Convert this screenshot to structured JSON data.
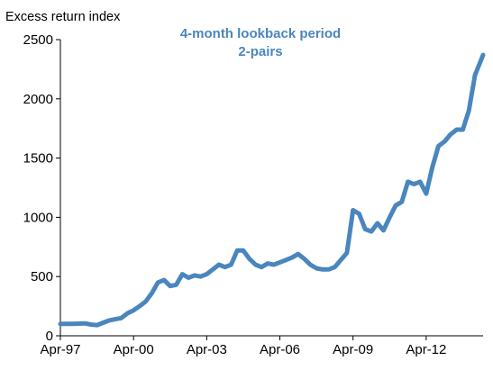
{
  "chart_data": {
    "type": "line",
    "title": "4-month lookback period",
    "subtitle": "2-pairs",
    "ylabel": "Excess return index",
    "xlabel": "",
    "ylim": [
      0,
      2500
    ],
    "yticks": [
      0,
      500,
      1000,
      1500,
      2000,
      2500
    ],
    "xlim": [
      "1997-04",
      "2014-08"
    ],
    "xticks": [
      {
        "date": "1997-04",
        "label": "Apr-97"
      },
      {
        "date": "2000-04",
        "label": "Apr-00"
      },
      {
        "date": "2003-04",
        "label": "Apr-03"
      },
      {
        "date": "2006-04",
        "label": "Apr-06"
      },
      {
        "date": "2009-04",
        "label": "Apr-09"
      },
      {
        "date": "2012-04",
        "label": "Apr-12"
      }
    ],
    "grid": false,
    "legend": "none",
    "line_color": "#4a86bd",
    "title_color": "#4a86bd",
    "series": [
      {
        "x": [
          "1997-04",
          "1997-10",
          "1998-04",
          "1998-07",
          "1998-10",
          "1999-01",
          "1999-04",
          "1999-07",
          "1999-10",
          "2000-01",
          "2000-04",
          "2000-07",
          "2000-10",
          "2001-01",
          "2001-04",
          "2001-07",
          "2001-10",
          "2002-01",
          "2002-04",
          "2002-07",
          "2002-10",
          "2003-01",
          "2003-04",
          "2003-07",
          "2003-10",
          "2004-01",
          "2004-04",
          "2004-07",
          "2004-10",
          "2005-01",
          "2005-04",
          "2005-07",
          "2005-10",
          "2006-01",
          "2006-04",
          "2006-07",
          "2006-10",
          "2007-01",
          "2007-04",
          "2007-07",
          "2007-10",
          "2008-01",
          "2008-04",
          "2008-07",
          "2008-10",
          "2009-01",
          "2009-04",
          "2009-07",
          "2009-10",
          "2010-01",
          "2010-04",
          "2010-07",
          "2010-10",
          "2011-01",
          "2011-04",
          "2011-07",
          "2011-10",
          "2012-01",
          "2012-04",
          "2012-07",
          "2012-10",
          "2013-01",
          "2013-04",
          "2013-07",
          "2013-10",
          "2014-01",
          "2014-04",
          "2014-08"
        ],
        "values": [
          100,
          100,
          105,
          95,
          90,
          110,
          130,
          140,
          150,
          190,
          215,
          250,
          290,
          360,
          450,
          470,
          420,
          430,
          520,
          490,
          510,
          500,
          520,
          560,
          600,
          580,
          600,
          720,
          720,
          650,
          600,
          580,
          610,
          600,
          620,
          640,
          660,
          690,
          650,
          600,
          570,
          560,
          560,
          580,
          640,
          700,
          1060,
          1030,
          900,
          880,
          950,
          890,
          1000,
          1100,
          1130,
          1300,
          1280,
          1300,
          1200,
          1420,
          1600,
          1640,
          1700,
          1740,
          1740,
          1900,
          2200,
          2370
        ]
      }
    ]
  }
}
